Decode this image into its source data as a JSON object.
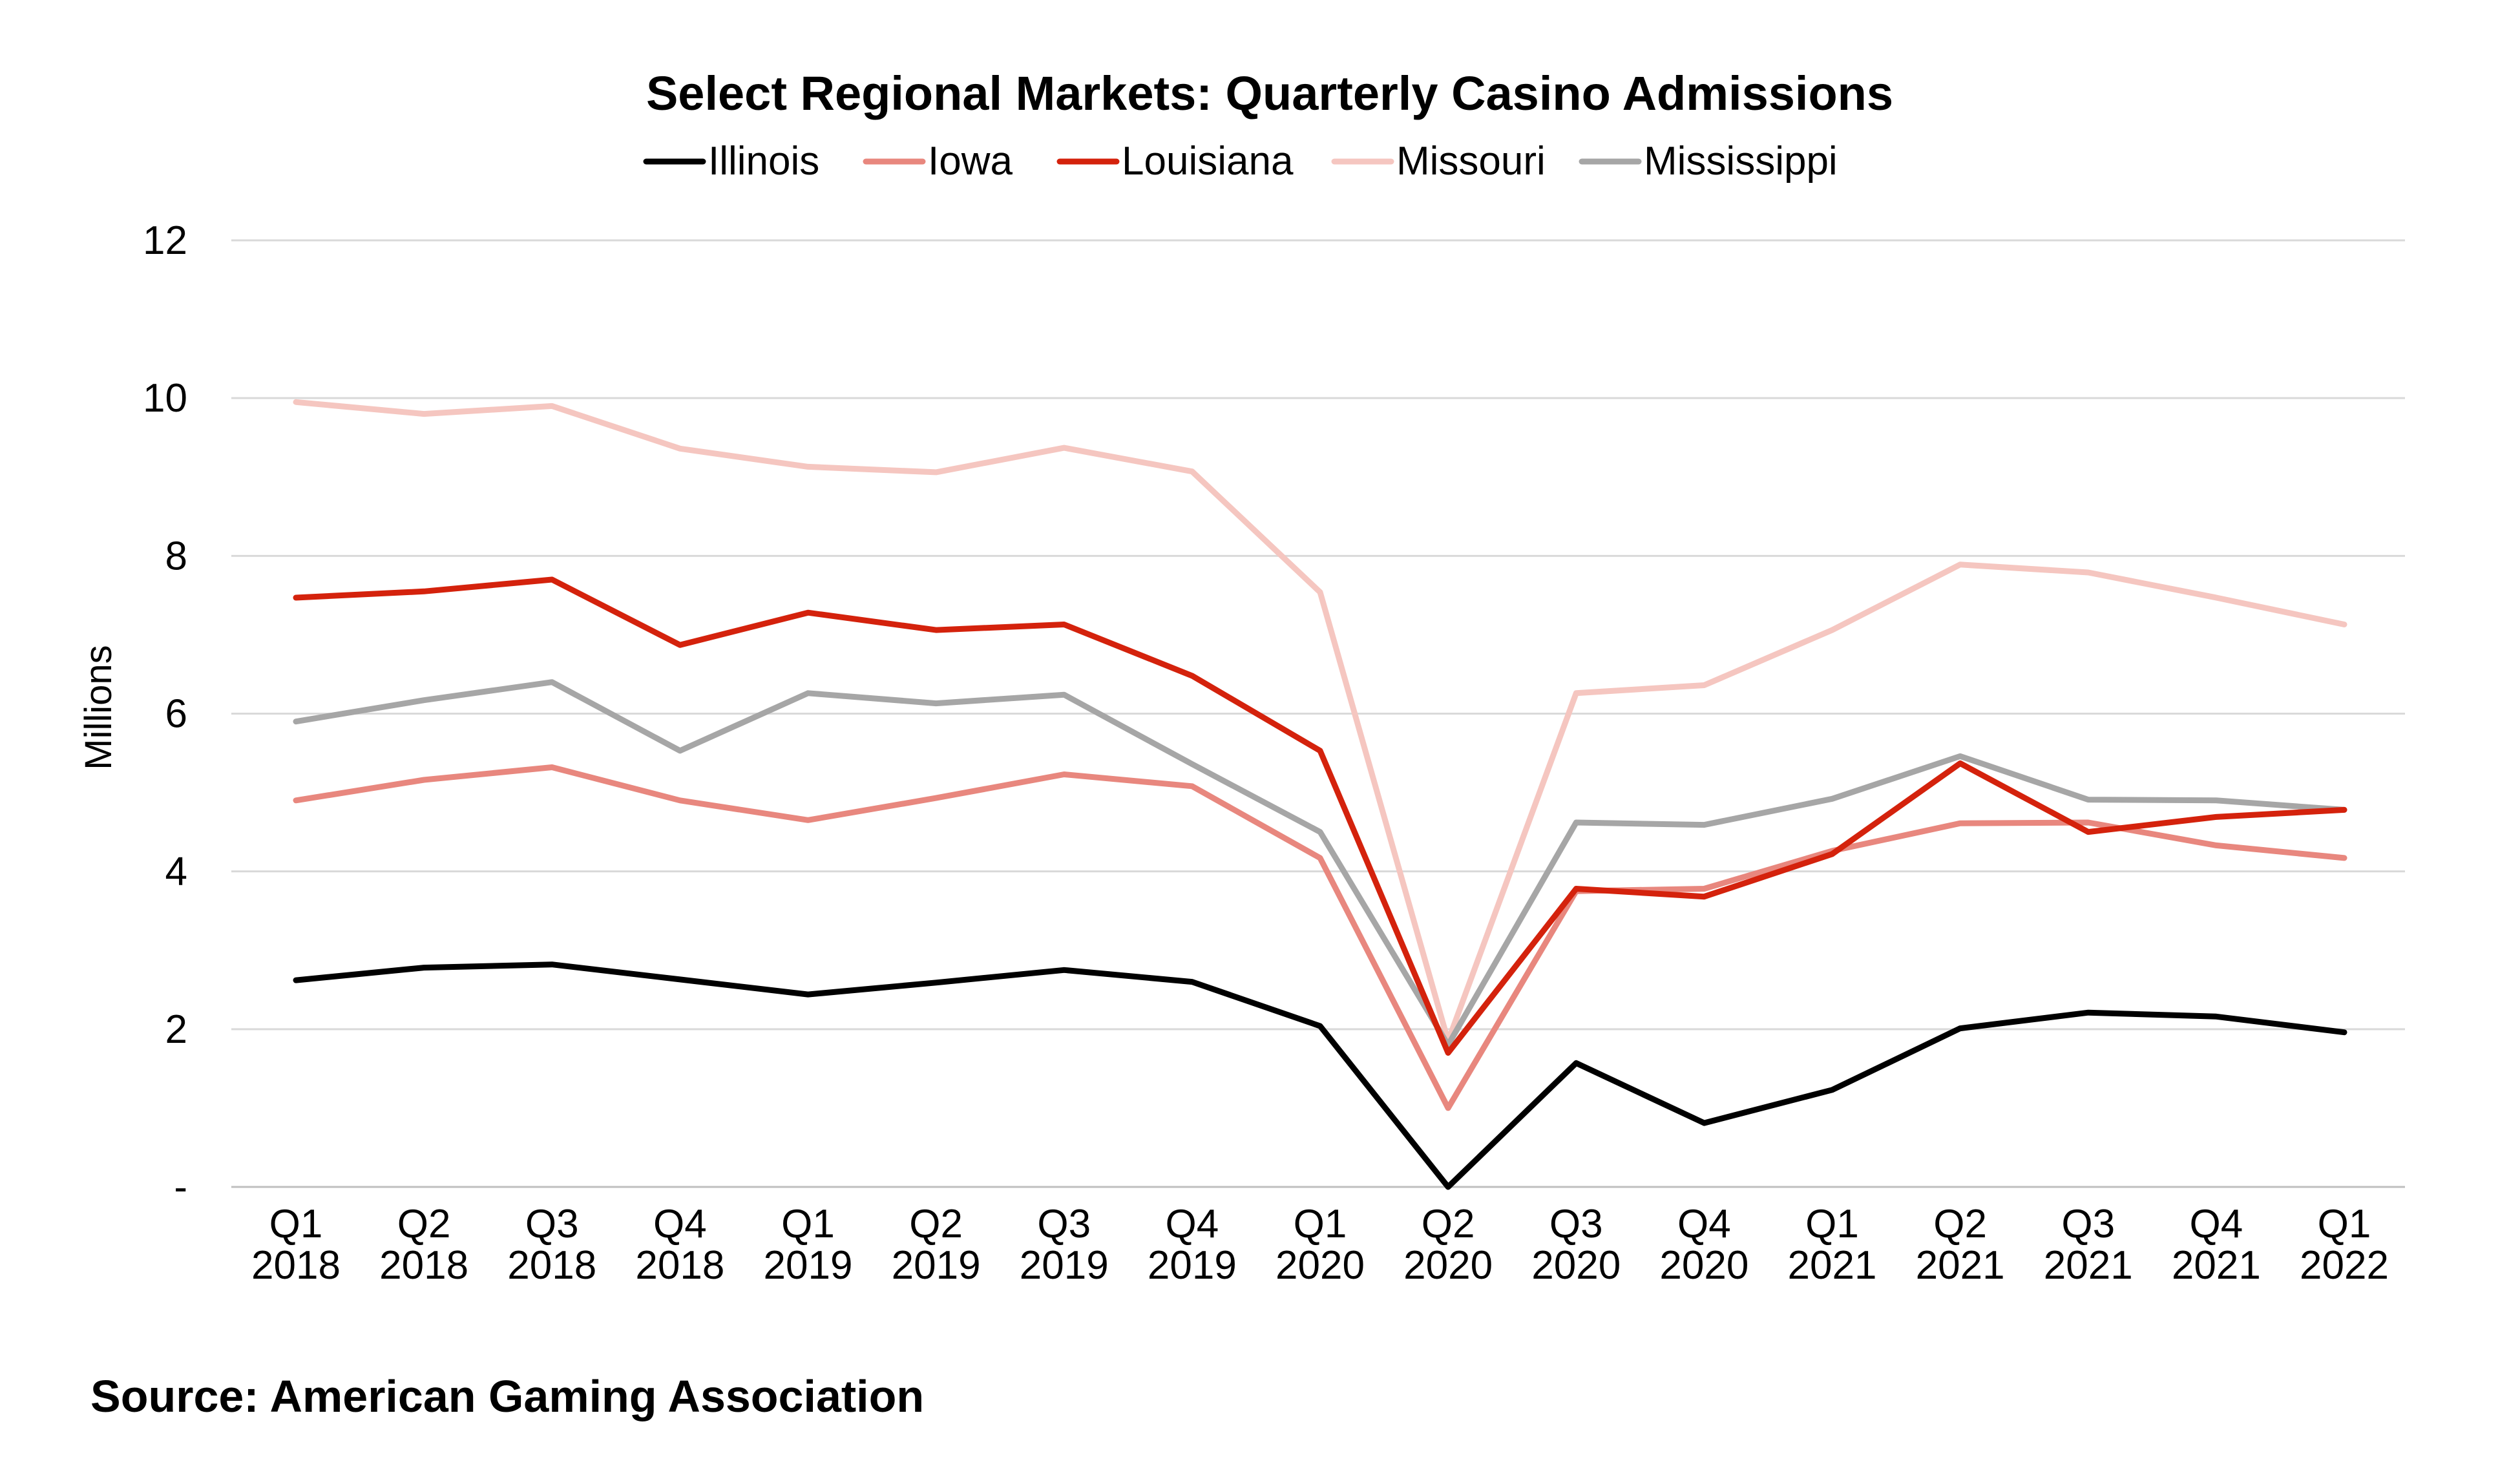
{
  "chart_data": {
    "type": "line",
    "title": "Select Regional Markets: Quarterly Casino Admissions",
    "ylabel": "Millions",
    "xlabel": "",
    "ylim": [
      0,
      12
    ],
    "yticks": [
      0,
      2,
      4,
      6,
      8,
      10,
      12
    ],
    "ytick_labels": [
      "-",
      "2",
      "4",
      "6",
      "8",
      "10",
      "12"
    ],
    "grid": true,
    "legend_position": "top",
    "categories": [
      [
        "Q1",
        "2018"
      ],
      [
        "Q2",
        "2018"
      ],
      [
        "Q3",
        "2018"
      ],
      [
        "Q4",
        "2018"
      ],
      [
        "Q1",
        "2019"
      ],
      [
        "Q2",
        "2019"
      ],
      [
        "Q3",
        "2019"
      ],
      [
        "Q4",
        "2019"
      ],
      [
        "Q1",
        "2020"
      ],
      [
        "Q2",
        "2020"
      ],
      [
        "Q3",
        "2020"
      ],
      [
        "Q4",
        "2020"
      ],
      [
        "Q1",
        "2021"
      ],
      [
        "Q2",
        "2021"
      ],
      [
        "Q3",
        "2021"
      ],
      [
        "Q4",
        "2021"
      ],
      [
        "Q1",
        "2022"
      ]
    ],
    "series": [
      {
        "name": "Illinois",
        "color": "#000000",
        "values": [
          2.62,
          2.78,
          2.82,
          2.63,
          2.44,
          2.59,
          2.75,
          2.6,
          2.04,
          0.0,
          1.57,
          0.81,
          1.23,
          2.01,
          2.21,
          2.16,
          1.96
        ]
      },
      {
        "name": "Iowa",
        "color": "#E8877E",
        "values": [
          4.9,
          5.16,
          5.32,
          4.9,
          4.65,
          4.93,
          5.23,
          5.08,
          4.17,
          1.0,
          3.75,
          3.78,
          4.26,
          4.61,
          4.62,
          4.33,
          4.17
        ]
      },
      {
        "name": "Louisiana",
        "color": "#D4220C",
        "values": [
          7.47,
          7.55,
          7.7,
          6.87,
          7.28,
          7.06,
          7.13,
          6.48,
          5.53,
          1.7,
          3.78,
          3.68,
          4.22,
          5.37,
          4.5,
          4.69,
          4.78
        ]
      },
      {
        "name": "Missouri",
        "color": "#F5C6C0",
        "values": [
          9.95,
          9.8,
          9.9,
          9.36,
          9.13,
          9.06,
          9.37,
          9.07,
          7.54,
          1.85,
          6.26,
          6.36,
          7.06,
          7.89,
          7.79,
          7.47,
          7.13
        ]
      },
      {
        "name": "Mississippi",
        "color": "#A6A6A6",
        "values": [
          5.9,
          6.17,
          6.4,
          5.53,
          6.26,
          6.13,
          6.24,
          5.36,
          4.5,
          1.8,
          4.62,
          4.59,
          4.92,
          5.46,
          4.91,
          4.9,
          4.78
        ]
      }
    ]
  },
  "source": "Source: American Gaming Association"
}
